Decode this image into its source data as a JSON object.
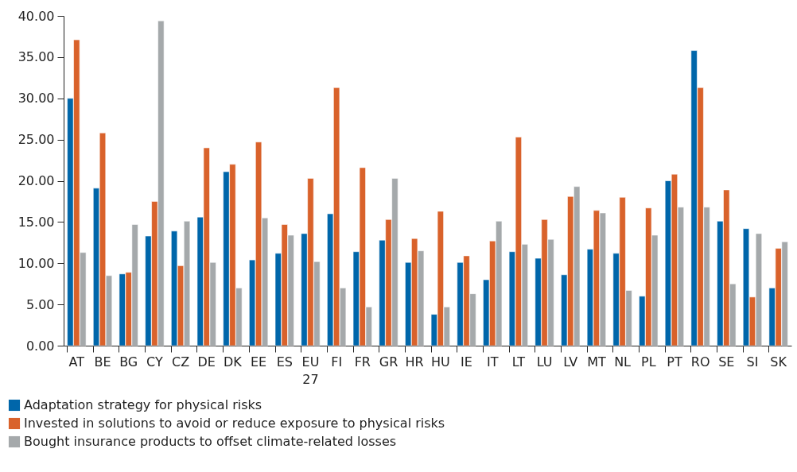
{
  "chart_data": {
    "type": "bar",
    "categories": [
      "AT",
      "BE",
      "BG",
      "CY",
      "CZ",
      "DE",
      "DK",
      "EE",
      "ES",
      "EU 27",
      "FI",
      "FR",
      "GR",
      "HR",
      "HU",
      "IE",
      "IT",
      "LT",
      "LU",
      "LV",
      "MT",
      "NL",
      "PL",
      "PT",
      "RO",
      "SE",
      "SI",
      "SK"
    ],
    "series": [
      {
        "name": "Adaptation strategy for physical risks",
        "color": "#0066aa",
        "values": [
          30.0,
          19.1,
          8.7,
          13.3,
          13.9,
          15.6,
          21.1,
          10.4,
          11.2,
          13.6,
          16.0,
          11.4,
          12.8,
          10.1,
          3.8,
          10.1,
          8.0,
          11.4,
          10.6,
          8.6,
          11.7,
          11.2,
          6.0,
          20.0,
          35.8,
          15.1,
          14.2,
          7.0
        ]
      },
      {
        "name": "Invested in solutions to avoid or reduce exposure to physical risks",
        "color": "#d9622b",
        "values": [
          37.1,
          25.8,
          8.9,
          17.5,
          9.7,
          24.0,
          22.0,
          24.7,
          14.7,
          20.3,
          31.3,
          21.6,
          15.3,
          13.0,
          16.3,
          10.9,
          12.7,
          25.3,
          15.3,
          18.1,
          16.4,
          18.0,
          16.7,
          20.8,
          31.3,
          18.9,
          5.9,
          11.8
        ]
      },
      {
        "name": "Bought insurance products to offset climate-related losses",
        "color": "#a5a9ab",
        "values": [
          11.3,
          8.5,
          14.7,
          39.4,
          15.1,
          10.1,
          7.0,
          15.5,
          13.4,
          10.2,
          7.0,
          4.7,
          20.3,
          11.5,
          4.7,
          6.3,
          15.1,
          12.3,
          12.9,
          19.3,
          16.1,
          6.7,
          13.4,
          16.8,
          16.8,
          7.5,
          13.6,
          12.6
        ]
      }
    ],
    "ylim": [
      0,
      40
    ],
    "yticks": [
      {
        "value": 0,
        "label": "0.00"
      },
      {
        "value": 5,
        "label": "5.00"
      },
      {
        "value": 10,
        "label": "10.00"
      },
      {
        "value": 15,
        "label": "15.00"
      },
      {
        "value": 20,
        "label": "20.00"
      },
      {
        "value": 25,
        "label": "25.00"
      },
      {
        "value": 30,
        "label": "30.00"
      },
      {
        "value": 35,
        "label": "35.00"
      },
      {
        "value": 40,
        "label": "40.00"
      }
    ],
    "grid": false,
    "legend": "bottom"
  }
}
